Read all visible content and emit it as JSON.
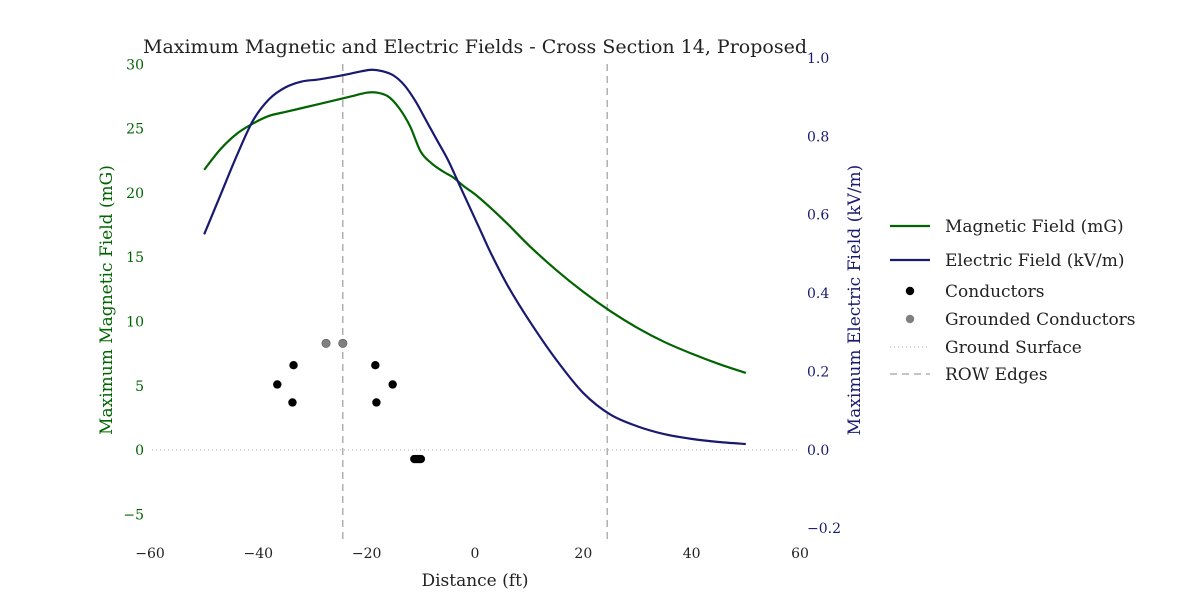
{
  "chart_data": {
    "type": "line",
    "title": "Maximum Magnetic and Electric Fields - Cross Section 14, Proposed",
    "xlabel": "Distance (ft)",
    "ylabel_left": "Maximum Magnetic Field (mG)",
    "ylabel_right": "Maximum Electric Field (kV/m)",
    "xlim": [
      -60,
      60
    ],
    "ylim_left": [
      -7,
      30.5
    ],
    "ylim_right": [
      -0.23,
      1.0
    ],
    "x_ticks": [
      "−60",
      "−40",
      "−20",
      "0",
      "20",
      "40",
      "60"
    ],
    "y_left_ticks": [
      "−5",
      "0",
      "5",
      "10",
      "15",
      "20",
      "25",
      "30"
    ],
    "y_right_ticks": [
      "−0.2",
      "0.0",
      "0.2",
      "0.4",
      "0.6",
      "0.8",
      "1.0"
    ],
    "grid": false,
    "legend_position": "right",
    "colors": {
      "magnetic": "#006400",
      "electric": "#191970",
      "conductor": "#000000",
      "grounded": "#808080",
      "ground_line": "#aaaaaa",
      "row_line": "#888888"
    },
    "series": [
      {
        "name": "Magnetic Field (mG)",
        "axis": "left",
        "x": [
          -50,
          -47,
          -44,
          -41,
          -38,
          -35,
          -32,
          -29,
          -26,
          -23,
          -20,
          -18,
          -16,
          -14,
          -12,
          -10,
          -8,
          -6,
          -4,
          -2,
          0,
          3,
          6,
          10,
          15,
          20,
          25,
          30,
          35,
          40,
          45,
          50
        ],
        "values": [
          21.8,
          23.4,
          24.6,
          25.4,
          26.0,
          26.3,
          26.6,
          26.9,
          27.2,
          27.5,
          27.8,
          27.8,
          27.5,
          26.6,
          25.2,
          23.2,
          22.3,
          21.7,
          21.2,
          20.5,
          19.9,
          18.8,
          17.6,
          15.9,
          14.0,
          12.3,
          10.8,
          9.5,
          8.4,
          7.5,
          6.7,
          6.0
        ]
      },
      {
        "name": "Electric Field (kV/m)",
        "axis": "right",
        "x": [
          -50,
          -47,
          -44,
          -41,
          -38,
          -35,
          -32,
          -29,
          -26,
          -23,
          -21,
          -19,
          -17,
          -15,
          -13,
          -11,
          -9,
          -7,
          -5,
          -3,
          -1,
          1,
          3,
          6,
          10,
          15,
          20,
          25,
          30,
          35,
          40,
          45,
          50
        ],
        "values": [
          0.55,
          0.65,
          0.75,
          0.84,
          0.895,
          0.925,
          0.94,
          0.945,
          0.952,
          0.96,
          0.966,
          0.97,
          0.966,
          0.955,
          0.93,
          0.89,
          0.84,
          0.79,
          0.74,
          0.68,
          0.62,
          0.56,
          0.5,
          0.42,
          0.33,
          0.23,
          0.145,
          0.09,
          0.06,
          0.04,
          0.028,
          0.02,
          0.015
        ]
      }
    ],
    "conductors": {
      "name": "Conductors",
      "points": [
        [
          -33.5,
          6.6
        ],
        [
          -36.5,
          5.1
        ],
        [
          -33.7,
          3.7
        ],
        [
          -18.4,
          6.6
        ],
        [
          -15.2,
          5.1
        ],
        [
          -18.2,
          3.7
        ],
        [
          -11.2,
          -0.7
        ],
        [
          -10.9,
          -0.7
        ],
        [
          -10.6,
          -0.7
        ],
        [
          -10.3,
          -0.7
        ],
        [
          -10.0,
          -0.7
        ]
      ]
    },
    "grounded_conductors": {
      "name": "Grounded Conductors",
      "points": [
        [
          -27.5,
          8.3
        ],
        [
          -24.4,
          8.3
        ]
      ]
    },
    "ground_surface": {
      "name": "Ground Surface",
      "y": 0
    },
    "row_edges": {
      "name": "ROW Edges",
      "x": [
        -24.4,
        24.4
      ]
    },
    "legend": [
      {
        "label": "Magnetic Field (mG)",
        "kind": "line",
        "color": "#006400"
      },
      {
        "label": "Electric Field (kV/m)",
        "kind": "line",
        "color": "#191970"
      },
      {
        "label": "Conductors",
        "kind": "marker",
        "color": "#000000"
      },
      {
        "label": "Grounded Conductors",
        "kind": "marker",
        "color": "#808080"
      },
      {
        "label": "Ground Surface",
        "kind": "dotted",
        "color": "#aaaaaa"
      },
      {
        "label": "ROW Edges",
        "kind": "dashed",
        "color": "#888888"
      }
    ]
  }
}
